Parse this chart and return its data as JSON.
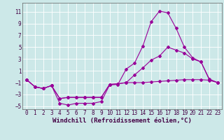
{
  "xlabel": "Windchill (Refroidissement éolien,°C)",
  "bg_color": "#cce8e8",
  "grid_color": "#ffffff",
  "line_color": "#990099",
  "xlim": [
    -0.5,
    23.5
  ],
  "ylim": [
    -5.5,
    12.5
  ],
  "yticks": [
    -5,
    -3,
    -1,
    1,
    3,
    5,
    7,
    9,
    11
  ],
  "xticks": [
    0,
    1,
    2,
    3,
    4,
    5,
    6,
    7,
    8,
    9,
    10,
    11,
    12,
    13,
    14,
    15,
    16,
    17,
    18,
    19,
    20,
    21,
    22,
    23
  ],
  "curve1_x": [
    0,
    1,
    2,
    3,
    4,
    5,
    6,
    7,
    8,
    9,
    10,
    11,
    12,
    13,
    14,
    15,
    16,
    17,
    18,
    19,
    20,
    21,
    22,
    23
  ],
  "curve1_y": [
    -0.5,
    -1.7,
    -2.0,
    -1.5,
    -4.5,
    -4.8,
    -4.5,
    -4.5,
    -4.5,
    -4.2,
    -1.4,
    -1.3,
    1.3,
    2.3,
    5.2,
    9.3,
    11.1,
    10.8,
    8.2,
    5.0,
    3.2,
    2.5,
    -0.5,
    -1.0
  ],
  "curve2_x": [
    0,
    1,
    2,
    3,
    4,
    5,
    6,
    7,
    8,
    9,
    10,
    11,
    12,
    13,
    14,
    15,
    16,
    17,
    18,
    19,
    20,
    21,
    22,
    23
  ],
  "curve2_y": [
    -0.5,
    -1.7,
    -2.0,
    -1.5,
    -3.7,
    -3.5,
    -3.5,
    -3.5,
    -3.5,
    -3.5,
    -1.3,
    -1.2,
    -1.0,
    0.3,
    1.5,
    2.8,
    3.5,
    5.0,
    4.5,
    4.0,
    3.0,
    2.5,
    -0.4,
    -1.0
  ],
  "curve3_x": [
    0,
    1,
    2,
    3,
    4,
    5,
    6,
    7,
    8,
    9,
    10,
    11,
    12,
    13,
    14,
    15,
    16,
    17,
    18,
    19,
    20,
    21,
    22,
    23
  ],
  "curve3_y": [
    -0.5,
    -1.7,
    -2.0,
    -1.5,
    -3.7,
    -3.5,
    -3.5,
    -3.5,
    -3.5,
    -3.5,
    -1.3,
    -1.2,
    -1.0,
    -1.0,
    -1.0,
    -0.9,
    -0.8,
    -0.7,
    -0.6,
    -0.5,
    -0.5,
    -0.5,
    -0.6,
    -1.0
  ],
  "xlabel_fontsize": 6.5,
  "tick_fontsize": 5.5,
  "markersize": 2.0,
  "linewidth": 0.8
}
